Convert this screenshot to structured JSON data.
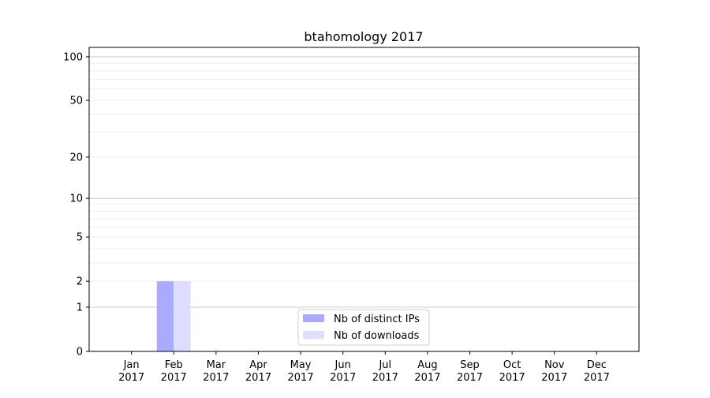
{
  "chart_data": {
    "type": "bar",
    "title": "btahomology 2017",
    "xlabel": "",
    "ylabel": "",
    "y_scale": "symlog (log of 1+value)",
    "ylim": [
      0,
      116
    ],
    "xlim": [
      -1,
      12
    ],
    "grid": "horizontal, major and minor",
    "legend_position": "lower center",
    "categories": [
      "Jan\n2017",
      "Feb\n2017",
      "Mar\n2017",
      "Apr\n2017",
      "May\n2017",
      "Jun\n2017",
      "Jul\n2017",
      "Aug\n2017",
      "Sep\n2017",
      "Oct\n2017",
      "Nov\n2017",
      "Dec\n2017"
    ],
    "y_ticks": [
      0,
      1,
      2,
      5,
      10,
      20,
      50,
      100
    ],
    "series": [
      {
        "name": "Nb of distinct IPs",
        "color": "#aaaaff",
        "values": [
          0,
          2,
          0,
          0,
          0,
          0,
          0,
          0,
          0,
          0,
          0,
          0
        ]
      },
      {
        "name": "Nb of downloads",
        "color": "#ddddff",
        "values": [
          0,
          2,
          0,
          0,
          0,
          0,
          0,
          0,
          0,
          0,
          0,
          0
        ]
      }
    ]
  }
}
